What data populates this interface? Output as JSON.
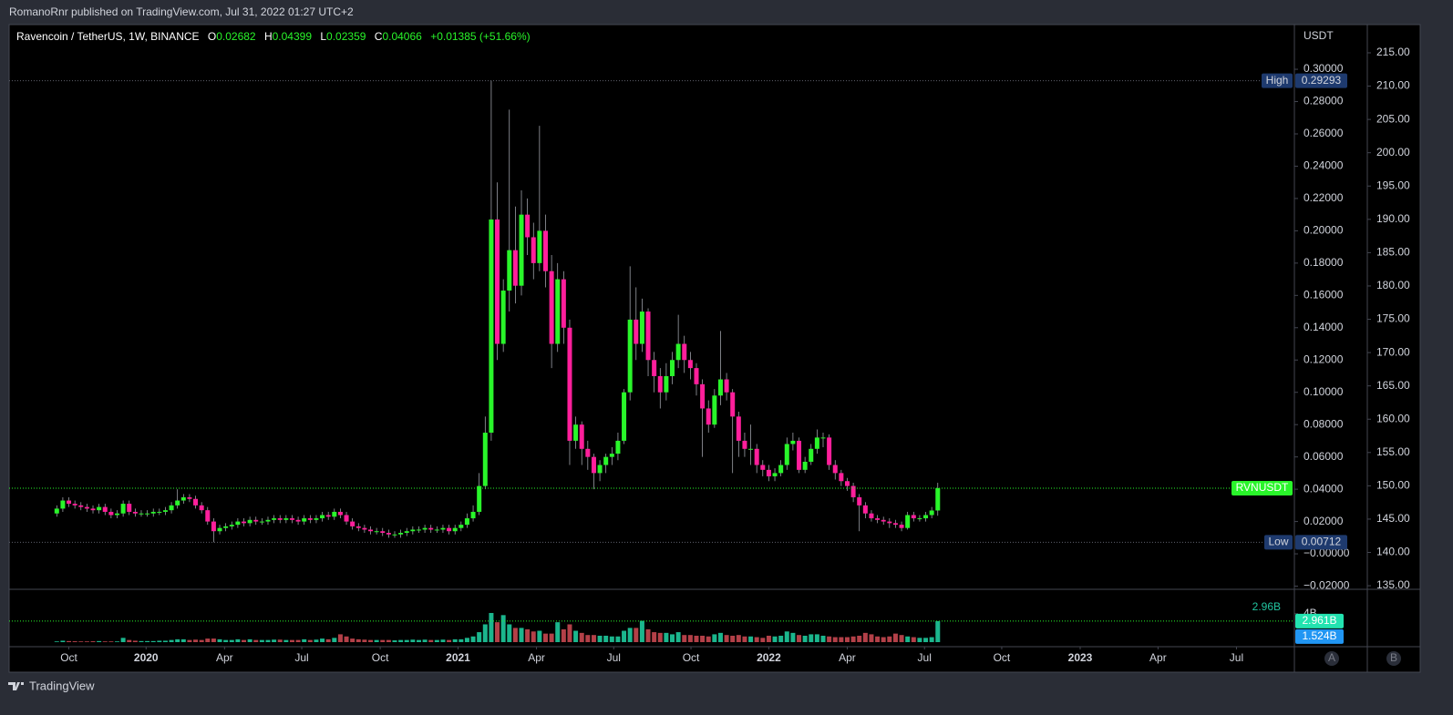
{
  "header": {
    "publisher": "RomanoRnr published on TradingView.com, Jul 31, 2022 01:27 UTC+2",
    "footer_brand": "TradingView",
    "buttons": [
      "A",
      "B"
    ]
  },
  "chart_data": {
    "type": "candlestick",
    "title": "Ravencoin / TetherUS, 1W, BINANCE",
    "legend_letters": [
      "O",
      "H",
      "L",
      "C"
    ],
    "change": "+0.01385 (+51.66%)",
    "up_color": "#29f52a",
    "down_color": "#ff1f9b",
    "open": [
      0.025,
      0.028,
      0.033,
      0.031,
      0.03,
      0.029,
      0.028,
      0.027,
      0.029,
      0.026,
      0.024,
      0.025,
      0.031,
      0.026,
      0.025,
      0.025,
      0.025,
      0.026,
      0.026,
      0.027,
      0.03,
      0.033,
      0.035,
      0.034,
      0.03,
      0.027,
      0.02,
      0.014,
      0.016,
      0.017,
      0.018,
      0.02,
      0.019,
      0.021,
      0.02,
      0.02,
      0.021,
      0.022,
      0.021,
      0.022,
      0.021,
      0.02,
      0.022,
      0.021,
      0.022,
      0.024,
      0.023,
      0.026,
      0.024,
      0.02,
      0.017,
      0.016,
      0.015,
      0.014,
      0.014,
      0.013,
      0.012,
      0.012,
      0.013,
      0.014,
      0.015,
      0.015,
      0.016,
      0.015,
      0.015,
      0.016,
      0.014,
      0.016,
      0.018,
      0.022,
      0.026,
      0.042,
      0.075,
      0.207,
      0.13,
      0.163,
      0.188,
      0.166,
      0.21,
      0.196,
      0.18,
      0.2,
      0.175,
      0.13,
      0.17,
      0.14,
      0.07,
      0.08,
      0.065,
      0.06,
      0.05,
      0.055,
      0.06,
      0.062,
      0.07,
      0.1,
      0.145,
      0.13,
      0.15,
      0.12,
      0.11,
      0.1,
      0.11,
      0.12,
      0.13,
      0.12,
      0.115,
      0.105,
      0.09,
      0.08,
      0.098,
      0.108,
      0.1,
      0.085,
      0.07,
      0.065,
      0.065,
      0.055,
      0.052,
      0.048,
      0.05,
      0.055,
      0.068,
      0.07,
      0.052,
      0.057,
      0.065,
      0.072,
      0.072,
      0.055,
      0.05,
      0.045,
      0.042,
      0.035,
      0.03,
      0.025,
      0.022,
      0.021,
      0.02,
      0.019,
      0.018,
      0.016,
      0.024,
      0.022,
      0.022,
      0.024,
      0.02682
    ],
    "high": [
      0.03,
      0.035,
      0.035,
      0.033,
      0.032,
      0.031,
      0.03,
      0.031,
      0.031,
      0.028,
      0.027,
      0.033,
      0.033,
      0.028,
      0.027,
      0.027,
      0.028,
      0.028,
      0.029,
      0.032,
      0.04,
      0.037,
      0.037,
      0.036,
      0.032,
      0.029,
      0.022,
      0.018,
      0.019,
      0.02,
      0.022,
      0.022,
      0.023,
      0.023,
      0.022,
      0.023,
      0.024,
      0.024,
      0.024,
      0.024,
      0.023,
      0.024,
      0.024,
      0.024,
      0.026,
      0.026,
      0.028,
      0.028,
      0.026,
      0.022,
      0.019,
      0.018,
      0.017,
      0.016,
      0.016,
      0.015,
      0.014,
      0.015,
      0.016,
      0.017,
      0.017,
      0.018,
      0.018,
      0.017,
      0.018,
      0.018,
      0.018,
      0.02,
      0.025,
      0.03,
      0.05,
      0.085,
      0.29293,
      0.23,
      0.17,
      0.275,
      0.215,
      0.225,
      0.22,
      0.205,
      0.265,
      0.21,
      0.185,
      0.18,
      0.175,
      0.145,
      0.085,
      0.082,
      0.07,
      0.062,
      0.058,
      0.062,
      0.066,
      0.075,
      0.102,
      0.178,
      0.165,
      0.158,
      0.152,
      0.125,
      0.115,
      0.118,
      0.125,
      0.148,
      0.135,
      0.125,
      0.118,
      0.108,
      0.095,
      0.102,
      0.138,
      0.112,
      0.102,
      0.088,
      0.075,
      0.08,
      0.068,
      0.058,
      0.055,
      0.053,
      0.058,
      0.072,
      0.075,
      0.072,
      0.06,
      0.068,
      0.077,
      0.075,
      0.074,
      0.058,
      0.052,
      0.047,
      0.044,
      0.037,
      0.032,
      0.027,
      0.024,
      0.023,
      0.022,
      0.021,
      0.02,
      0.026,
      0.026,
      0.024,
      0.026,
      0.029,
      0.04399
    ],
    "low": [
      0.023,
      0.026,
      0.029,
      0.028,
      0.027,
      0.026,
      0.025,
      0.025,
      0.024,
      0.022,
      0.022,
      0.023,
      0.024,
      0.023,
      0.023,
      0.023,
      0.023,
      0.024,
      0.024,
      0.025,
      0.028,
      0.031,
      0.032,
      0.028,
      0.025,
      0.018,
      0.00712,
      0.012,
      0.014,
      0.015,
      0.016,
      0.017,
      0.017,
      0.018,
      0.018,
      0.018,
      0.019,
      0.019,
      0.019,
      0.019,
      0.018,
      0.018,
      0.019,
      0.019,
      0.02,
      0.021,
      0.021,
      0.022,
      0.018,
      0.015,
      0.014,
      0.013,
      0.012,
      0.012,
      0.011,
      0.01,
      0.01,
      0.01,
      0.011,
      0.012,
      0.013,
      0.013,
      0.013,
      0.013,
      0.013,
      0.012,
      0.012,
      0.014,
      0.016,
      0.02,
      0.024,
      0.04,
      0.07,
      0.12,
      0.125,
      0.15,
      0.155,
      0.16,
      0.185,
      0.17,
      0.175,
      0.165,
      0.115,
      0.125,
      0.13,
      0.055,
      0.065,
      0.055,
      0.052,
      0.04,
      0.045,
      0.05,
      0.055,
      0.058,
      0.068,
      0.095,
      0.12,
      0.125,
      0.11,
      0.1,
      0.09,
      0.095,
      0.105,
      0.115,
      0.112,
      0.108,
      0.098,
      0.06,
      0.075,
      0.078,
      0.092,
      0.095,
      0.05,
      0.06,
      0.06,
      0.055,
      0.05,
      0.048,
      0.045,
      0.045,
      0.048,
      0.052,
      0.064,
      0.05,
      0.05,
      0.055,
      0.062,
      0.066,
      0.052,
      0.046,
      0.042,
      0.039,
      0.032,
      0.014,
      0.022,
      0.02,
      0.019,
      0.018,
      0.016,
      0.016,
      0.014,
      0.015,
      0.02,
      0.02,
      0.02,
      0.022,
      0.02359
    ],
    "close": [
      0.028,
      0.033,
      0.031,
      0.03,
      0.029,
      0.028,
      0.027,
      0.029,
      0.026,
      0.024,
      0.025,
      0.031,
      0.026,
      0.025,
      0.025,
      0.025,
      0.026,
      0.026,
      0.027,
      0.03,
      0.033,
      0.035,
      0.034,
      0.03,
      0.027,
      0.02,
      0.014,
      0.016,
      0.017,
      0.018,
      0.02,
      0.019,
      0.021,
      0.02,
      0.02,
      0.021,
      0.022,
      0.021,
      0.022,
      0.021,
      0.02,
      0.022,
      0.021,
      0.022,
      0.024,
      0.023,
      0.026,
      0.024,
      0.02,
      0.017,
      0.016,
      0.015,
      0.014,
      0.014,
      0.013,
      0.012,
      0.012,
      0.013,
      0.014,
      0.015,
      0.015,
      0.016,
      0.015,
      0.015,
      0.016,
      0.014,
      0.016,
      0.018,
      0.022,
      0.026,
      0.042,
      0.075,
      0.207,
      0.13,
      0.163,
      0.188,
      0.166,
      0.21,
      0.196,
      0.18,
      0.2,
      0.175,
      0.13,
      0.17,
      0.14,
      0.07,
      0.08,
      0.065,
      0.06,
      0.05,
      0.055,
      0.06,
      0.062,
      0.07,
      0.1,
      0.145,
      0.13,
      0.15,
      0.12,
      0.11,
      0.1,
      0.11,
      0.12,
      0.13,
      0.12,
      0.115,
      0.105,
      0.09,
      0.08,
      0.098,
      0.108,
      0.1,
      0.085,
      0.07,
      0.065,
      0.065,
      0.055,
      0.052,
      0.048,
      0.05,
      0.055,
      0.068,
      0.07,
      0.052,
      0.057,
      0.065,
      0.072,
      0.072,
      0.055,
      0.05,
      0.045,
      0.042,
      0.035,
      0.03,
      0.025,
      0.022,
      0.021,
      0.02,
      0.019,
      0.018,
      0.016,
      0.024,
      0.022,
      0.022,
      0.024,
      0.02682,
      0.04066
    ],
    "volume": [
      0.1,
      0.2,
      0.15,
      0.12,
      0.1,
      0.1,
      0.12,
      0.15,
      0.1,
      0.1,
      0.1,
      0.6,
      0.3,
      0.2,
      0.15,
      0.15,
      0.15,
      0.2,
      0.2,
      0.3,
      0.4,
      0.4,
      0.3,
      0.35,
      0.3,
      0.5,
      0.5,
      0.4,
      0.3,
      0.3,
      0.4,
      0.3,
      0.4,
      0.3,
      0.3,
      0.3,
      0.35,
      0.35,
      0.3,
      0.3,
      0.3,
      0.4,
      0.3,
      0.35,
      0.5,
      0.4,
      0.6,
      1.1,
      0.8,
      0.5,
      0.4,
      0.35,
      0.3,
      0.3,
      0.3,
      0.3,
      0.25,
      0.3,
      0.3,
      0.35,
      0.3,
      0.35,
      0.3,
      0.3,
      0.35,
      0.3,
      0.4,
      0.4,
      0.6,
      0.8,
      1.4,
      2.5,
      4.1,
      2.8,
      3.8,
      2.5,
      2.0,
      2.0,
      1.8,
      1.5,
      1.6,
      1.2,
      1.2,
      2.8,
      1.8,
      2.5,
      1.6,
      1.3,
      1.0,
      1.0,
      0.9,
      0.9,
      0.8,
      0.8,
      1.6,
      2.0,
      2.0,
      3.0,
      1.8,
      1.4,
      1.3,
      1.3,
      1.1,
      1.4,
      1.0,
      1.0,
      0.9,
      0.9,
      0.8,
      1.1,
      1.3,
      1.0,
      0.9,
      1.0,
      0.8,
      0.8,
      0.7,
      0.6,
      0.9,
      0.8,
      0.9,
      1.5,
      1.3,
      1.0,
      0.9,
      1.1,
      1.1,
      0.9,
      0.8,
      0.7,
      0.7,
      0.7,
      0.8,
      0.9,
      1.3,
      1.1,
      0.8,
      0.7,
      0.8,
      1.2,
      1.0,
      0.8,
      0.7,
      0.6,
      0.6,
      0.7,
      2.961
    ],
    "volume_lim": [
      0,
      7.3
    ],
    "volume_ticks": [
      {
        "value": 4,
        "label": "4B"
      }
    ],
    "volume_legend": {
      "value": 2.96,
      "label": "2.96B"
    },
    "volume_badges": [
      {
        "value": 2.961,
        "label": "2.961B",
        "color": "#22e3b0"
      },
      {
        "value": 1.524,
        "label": "1.524B",
        "color": "#2196f3"
      }
    ],
    "axis_unit": "USDT",
    "ylim": [
      -0.0214,
      0.3271
    ],
    "yticks": [
      {
        "value": 0.3,
        "label": "0.30000"
      },
      {
        "value": 0.28,
        "label": "0.28000"
      },
      {
        "value": 0.26,
        "label": "0.26000"
      },
      {
        "value": 0.24,
        "label": "0.24000"
      },
      {
        "value": 0.22,
        "label": "0.22000"
      },
      {
        "value": 0.2,
        "label": "0.20000"
      },
      {
        "value": 0.18,
        "label": "0.18000"
      },
      {
        "value": 0.16,
        "label": "0.16000"
      },
      {
        "value": 0.14,
        "label": "0.14000"
      },
      {
        "value": 0.12,
        "label": "0.12000"
      },
      {
        "value": 0.1,
        "label": "0.10000"
      },
      {
        "value": 0.08,
        "label": "0.08000"
      },
      {
        "value": 0.06,
        "label": "0.06000"
      },
      {
        "value": 0.04,
        "label": "0.04000"
      },
      {
        "value": 0.02,
        "label": "0.02000"
      },
      {
        "value": 0,
        "label": "−0.00000"
      },
      {
        "value": -0.02,
        "label": "−0.02000"
      }
    ],
    "y2lim": [
      134.6,
      219.1
    ],
    "y2ticks": [
      {
        "value": 215,
        "label": "215.00"
      },
      {
        "value": 210,
        "label": "210.00"
      },
      {
        "value": 205,
        "label": "205.00"
      },
      {
        "value": 200,
        "label": "200.00"
      },
      {
        "value": 195,
        "label": "195.00"
      },
      {
        "value": 190,
        "label": "190.00"
      },
      {
        "value": 185,
        "label": "185.00"
      },
      {
        "value": 180,
        "label": "180.00"
      },
      {
        "value": 175,
        "label": "175.00"
      },
      {
        "value": 170,
        "label": "170.00"
      },
      {
        "value": 165,
        "label": "165.00"
      },
      {
        "value": 160,
        "label": "160.00"
      },
      {
        "value": 155,
        "label": "155.00"
      },
      {
        "value": 150,
        "label": "150.00"
      },
      {
        "value": 145,
        "label": "145.00"
      },
      {
        "value": 140,
        "label": "140.00"
      },
      {
        "value": 135,
        "label": "135.00"
      }
    ],
    "xlim": [
      -7.9,
      205.1
    ],
    "xticks": [
      {
        "value": 2.0,
        "label": "Oct"
      },
      {
        "value": 14.8,
        "label": "2020"
      },
      {
        "value": 27.8,
        "label": "Apr"
      },
      {
        "value": 40.6,
        "label": "Jul"
      },
      {
        "value": 53.6,
        "label": "Oct"
      },
      {
        "value": 66.5,
        "label": "2021"
      },
      {
        "value": 79.5,
        "label": "Apr"
      },
      {
        "value": 92.3,
        "label": "Jul"
      },
      {
        "value": 105.1,
        "label": "Oct"
      },
      {
        "value": 118.0,
        "label": "2022"
      },
      {
        "value": 131.0,
        "label": "Apr"
      },
      {
        "value": 143.8,
        "label": "Jul"
      },
      {
        "value": 156.6,
        "label": "Oct"
      },
      {
        "value": 169.6,
        "label": "2023"
      },
      {
        "value": 182.5,
        "label": "Apr"
      },
      {
        "value": 195.5,
        "label": "Jul"
      }
    ],
    "high_marker": "High",
    "low_marker": "Low",
    "symbol_badge": "RVNUSDT"
  }
}
